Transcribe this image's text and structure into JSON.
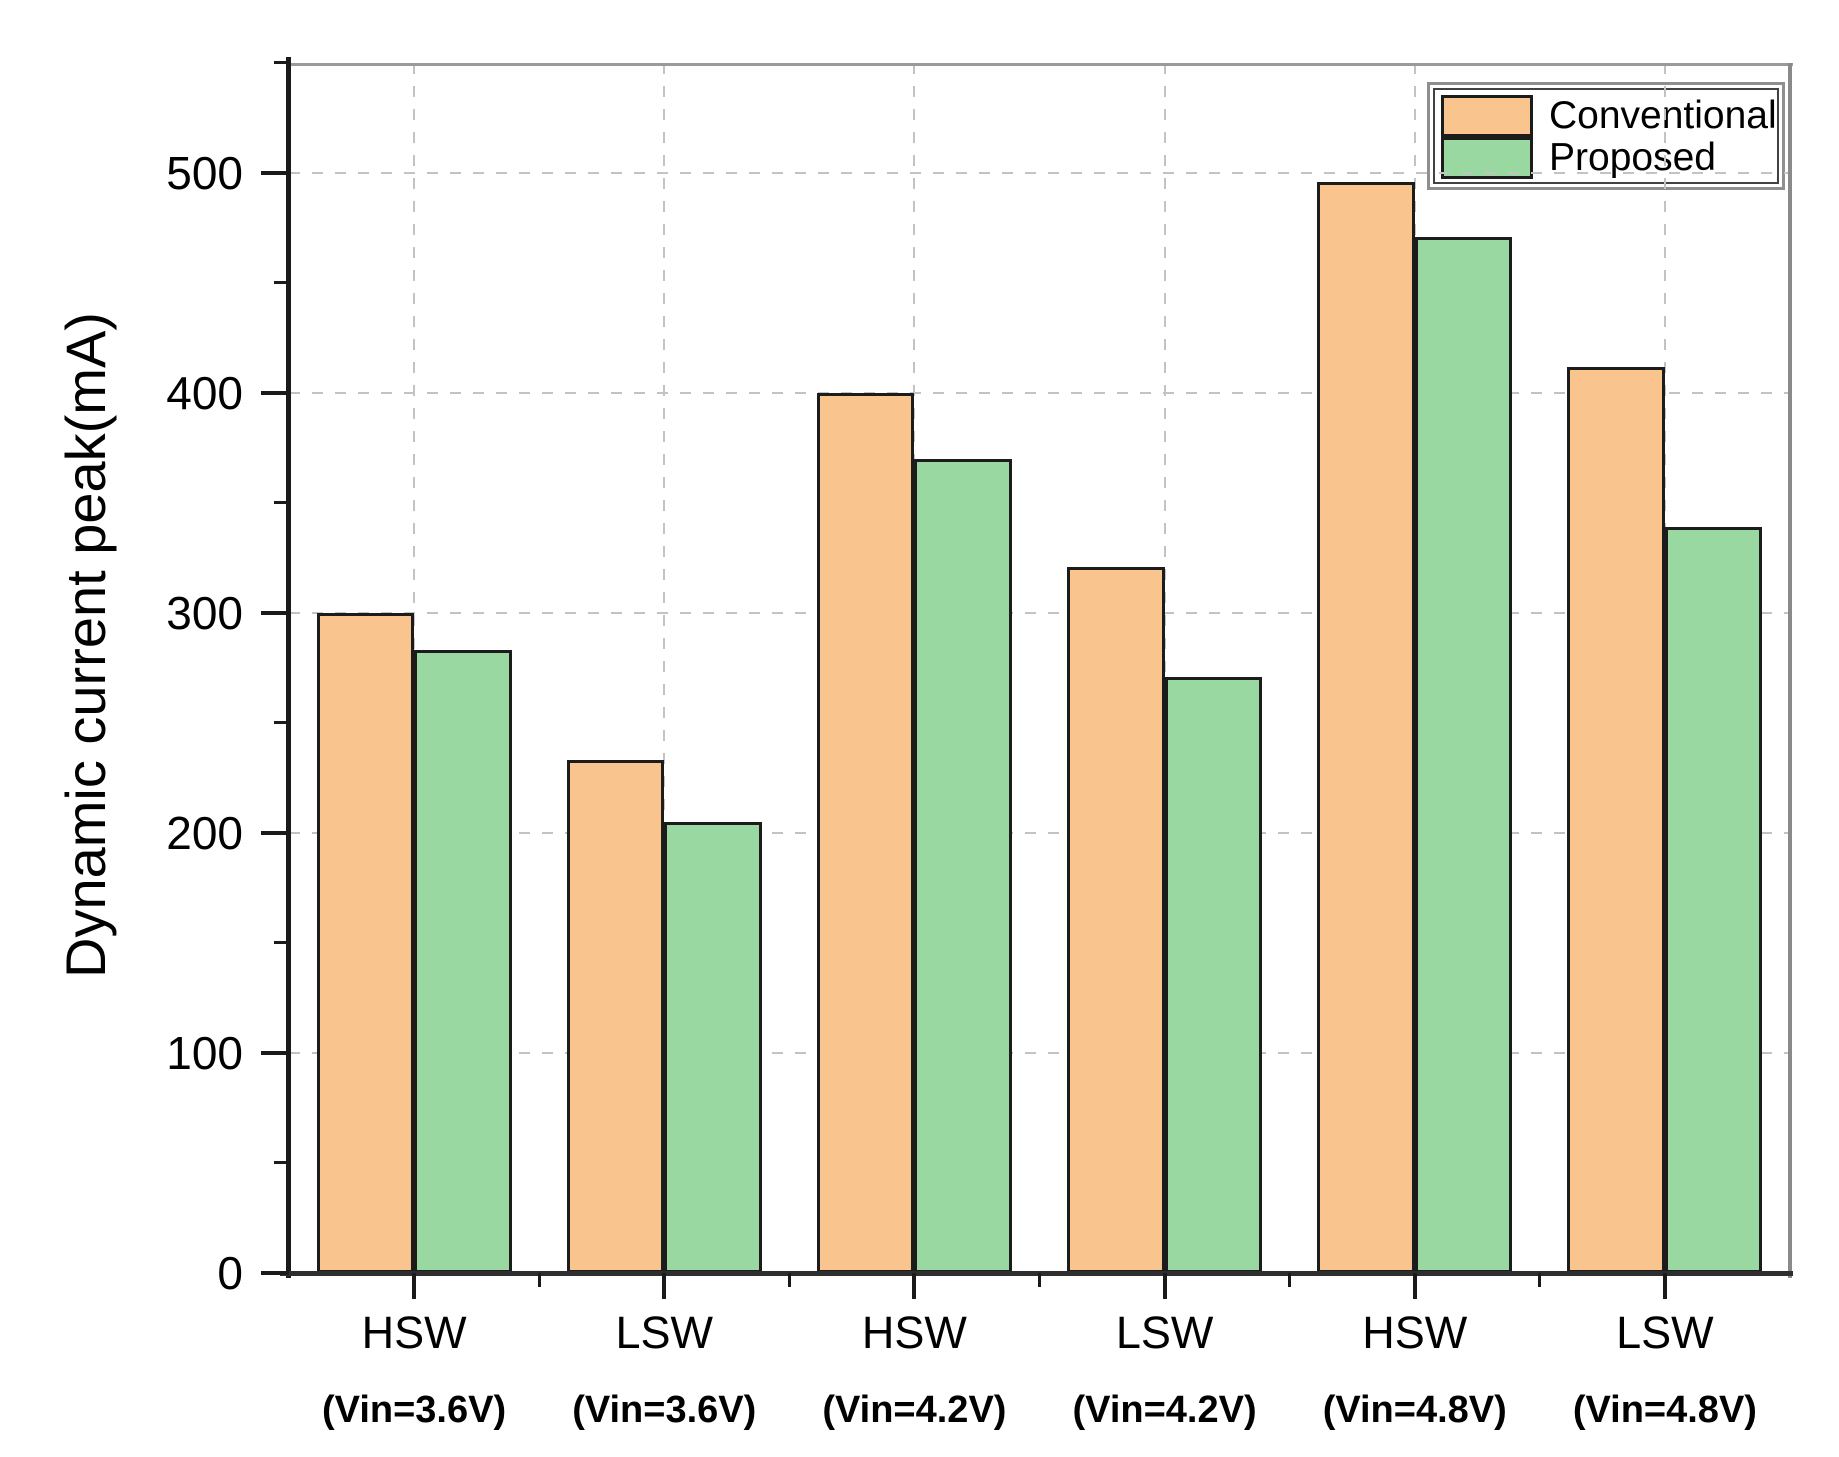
{
  "chart_data": {
    "type": "bar",
    "title": "",
    "xlabel": "",
    "ylabel": "Dynamic current peak(mA)",
    "categories": [
      "HSW (Vin=3.6V)",
      "LSW (Vin=3.6V)",
      "HSW (Vin=4.2V)",
      "LSW (Vin=4.2V)",
      "HSW (Vin=4.8V)",
      "LSW (Vin=4.8V)"
    ],
    "category_labels": [
      {
        "name": "HSW",
        "vin": "(Vin=3.6V)"
      },
      {
        "name": "LSW",
        "vin": "(Vin=3.6V)"
      },
      {
        "name": "HSW",
        "vin": "(Vin=4.2V)"
      },
      {
        "name": "LSW",
        "vin": "(Vin=4.2V)"
      },
      {
        "name": "HSW",
        "vin": "(Vin=4.8V)"
      },
      {
        "name": "LSW",
        "vin": "(Vin=4.8V)"
      }
    ],
    "series": [
      {
        "name": "Conventional",
        "color": "#FAC48E",
        "values": [
          300,
          233,
          400,
          321,
          496,
          412
        ]
      },
      {
        "name": "Proposed",
        "color": "#99D8A1",
        "values": [
          283,
          205,
          370,
          271,
          471,
          339
        ]
      }
    ],
    "ylim": [
      0,
      550
    ],
    "yticks": [
      0,
      100,
      200,
      300,
      400,
      500
    ],
    "y_minor_step": 50,
    "grid": "dashed-major-both-axes",
    "legend_position": "top-right-inside",
    "bar_border_color": "#1c1c1c",
    "grid_color": "#c3c3c3",
    "axis_color": "#1a1a1a"
  }
}
